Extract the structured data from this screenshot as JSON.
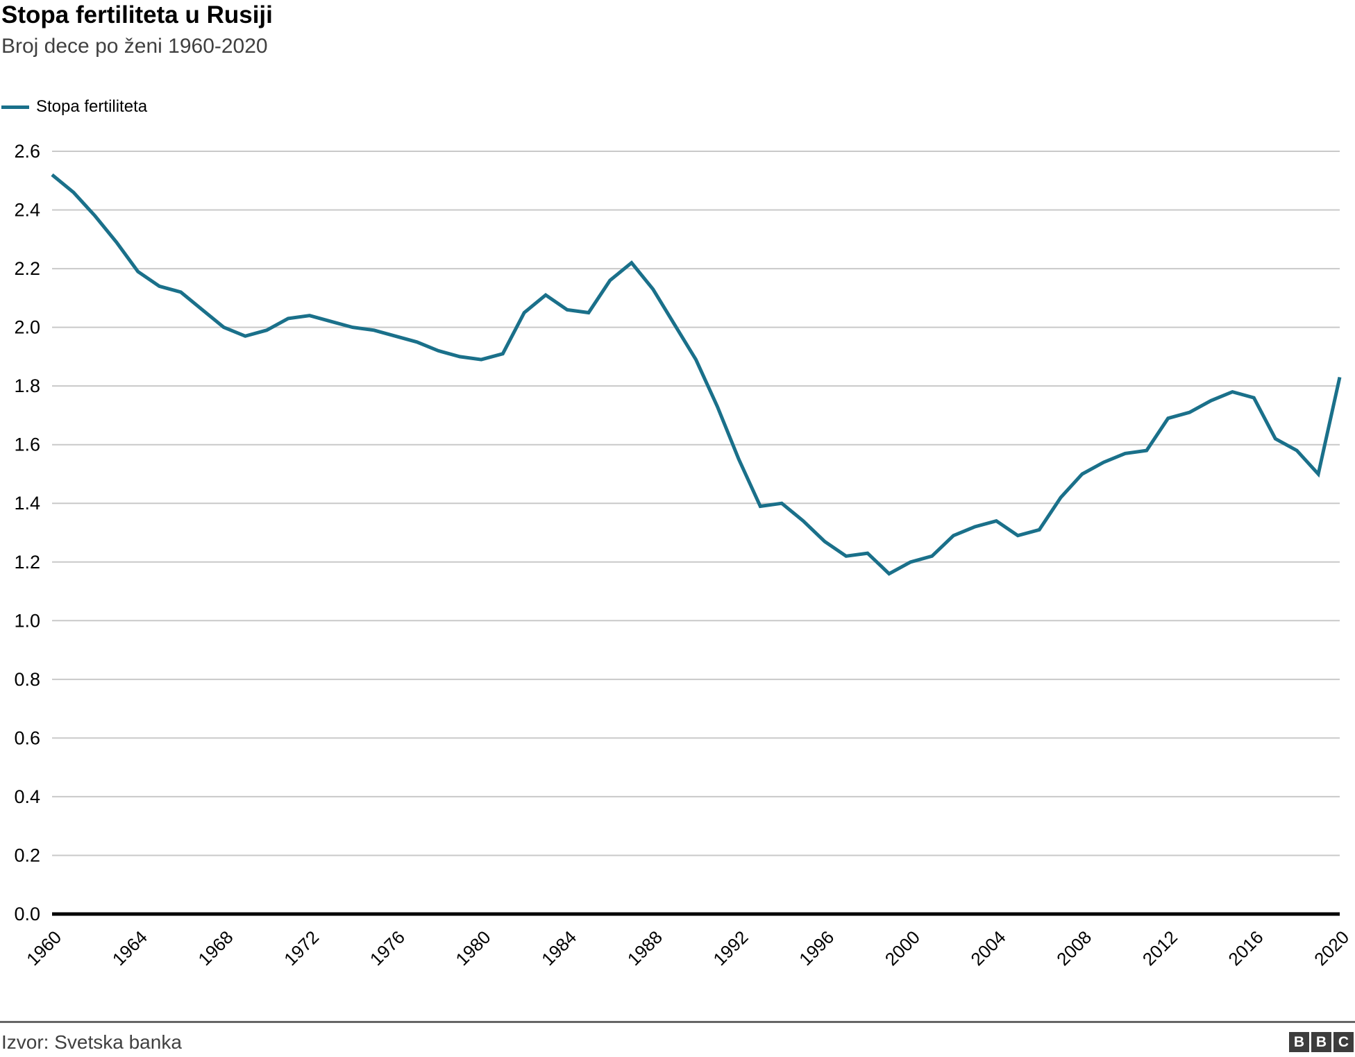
{
  "header": {
    "title": "Stopa fertiliteta u Rusiji",
    "subtitle": "Broj dece po ženi 1960-2020"
  },
  "legend": {
    "label": "Stopa fertiliteta"
  },
  "footer": {
    "source": "Izvor: Svetska banka",
    "logo_letters": [
      "B",
      "B",
      "C"
    ]
  },
  "colors": {
    "line": "#1a708a",
    "grid": "#c9c9c9",
    "axis": "#000000",
    "text": "#000000",
    "muted_text": "#404040",
    "divider": "#666666",
    "logo_box": "#3d3d3d"
  },
  "chart_data": {
    "type": "line",
    "title": "Stopa fertiliteta u Rusiji",
    "subtitle": "Broj dece po ženi 1960-2020",
    "series_name": "Stopa fertiliteta",
    "x": [
      1960,
      1961,
      1962,
      1963,
      1964,
      1965,
      1966,
      1967,
      1968,
      1969,
      1970,
      1971,
      1972,
      1973,
      1974,
      1975,
      1976,
      1977,
      1978,
      1979,
      1980,
      1981,
      1982,
      1983,
      1984,
      1985,
      1986,
      1987,
      1988,
      1989,
      1990,
      1991,
      1992,
      1993,
      1994,
      1995,
      1996,
      1997,
      1998,
      1999,
      2000,
      2001,
      2002,
      2003,
      2004,
      2005,
      2006,
      2007,
      2008,
      2009,
      2010,
      2011,
      2012,
      2013,
      2014,
      2015,
      2016,
      2017,
      2018,
      2019,
      2020
    ],
    "values": [
      2.52,
      2.46,
      2.38,
      2.29,
      2.19,
      2.14,
      2.12,
      2.06,
      2.0,
      1.97,
      1.99,
      2.03,
      2.04,
      2.02,
      2.0,
      1.99,
      1.97,
      1.95,
      1.92,
      1.9,
      1.89,
      1.91,
      2.05,
      2.11,
      2.06,
      2.05,
      2.16,
      2.22,
      2.13,
      2.01,
      1.89,
      1.73,
      1.55,
      1.39,
      1.4,
      1.34,
      1.27,
      1.22,
      1.23,
      1.16,
      1.2,
      1.22,
      1.29,
      1.32,
      1.34,
      1.29,
      1.31,
      1.42,
      1.5,
      1.54,
      1.57,
      1.58,
      1.69,
      1.71,
      1.75,
      1.78,
      1.76,
      1.62,
      1.58,
      1.5,
      1.83
    ],
    "xticks": [
      1960,
      1964,
      1968,
      1972,
      1976,
      1980,
      1984,
      1988,
      1992,
      1996,
      2000,
      2004,
      2008,
      2012,
      2016,
      2020
    ],
    "yticks": [
      0.0,
      0.2,
      0.4,
      0.6,
      0.8,
      1.0,
      1.2,
      1.4,
      1.6,
      1.8,
      2.0,
      2.2,
      2.4,
      2.6
    ],
    "ylim": [
      0,
      2.6
    ],
    "xlabel": "",
    "ylabel": "",
    "grid": "horizontal",
    "legend_position": "top-left",
    "x_tick_rotation": 45
  }
}
